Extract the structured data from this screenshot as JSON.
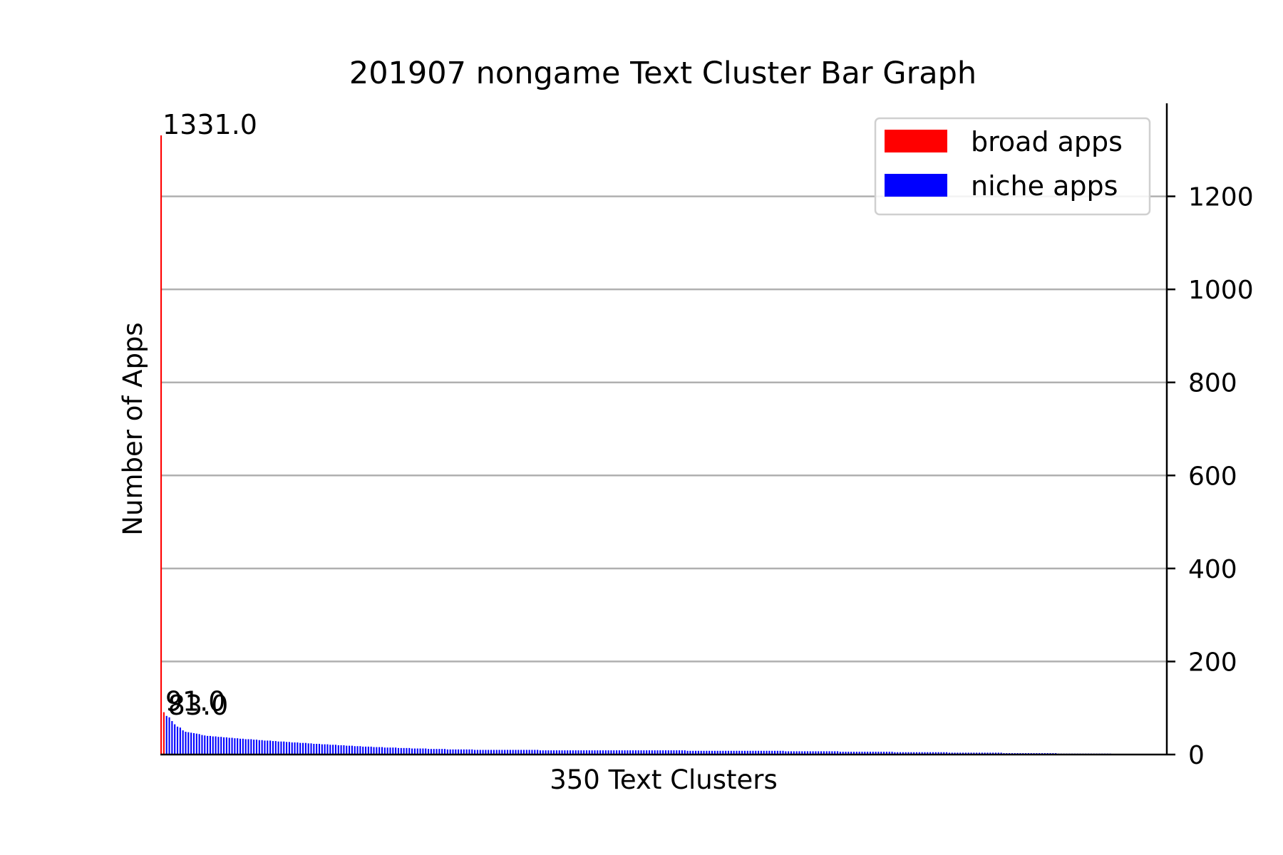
{
  "chart_data": {
    "type": "bar",
    "title": "201907 nongame Text Cluster Bar Graph",
    "xlabel": "350 Text Clusters",
    "ylabel": "Number of Apps",
    "ylim": [
      0,
      1400
    ],
    "yticks": [
      0,
      200,
      400,
      600,
      800,
      1000,
      1200
    ],
    "y_axis_side": "right",
    "grid": "horizontal",
    "legend_position": "top-right",
    "colors": {
      "broad": "#ff0000",
      "niche": "#0000ff",
      "grid": "#b0b0b0"
    },
    "series": [
      {
        "name": "broad apps",
        "color": "#ff0000",
        "index_range": [
          0,
          1
        ]
      },
      {
        "name": "niche apps",
        "color": "#0000ff",
        "index_range": [
          2,
          349
        ]
      }
    ],
    "data_labels": [
      {
        "index": 0,
        "text": "1331.0"
      },
      {
        "index": 1,
        "text": "91.0"
      },
      {
        "index": 2,
        "text": "83.0"
      }
    ],
    "values": [
      1331,
      91,
      83,
      80,
      72,
      65,
      60,
      58,
      52,
      49,
      48,
      47,
      46,
      45,
      44,
      42,
      41,
      40,
      40,
      39,
      39,
      38,
      38,
      37,
      37,
      36,
      36,
      35,
      35,
      34,
      34,
      33,
      33,
      33,
      32,
      32,
      31,
      31,
      30,
      30,
      30,
      29,
      29,
      28,
      28,
      28,
      27,
      27,
      26,
      26,
      26,
      25,
      25,
      25,
      24,
      24,
      23,
      23,
      23,
      22,
      22,
      22,
      21,
      21,
      21,
      20,
      20,
      20,
      19,
      19,
      19,
      18,
      18,
      18,
      17,
      17,
      17,
      17,
      16,
      16,
      16,
      16,
      15,
      15,
      15,
      15,
      15,
      14,
      14,
      14,
      14,
      14,
      13,
      13,
      13,
      13,
      13,
      13,
      12,
      12,
      12,
      12,
      12,
      12,
      12,
      11,
      11,
      11,
      11,
      11,
      11,
      11,
      11,
      11,
      11,
      10,
      10,
      10,
      10,
      10,
      10,
      10,
      10,
      10,
      10,
      10,
      10,
      10,
      10,
      10,
      10,
      10,
      10,
      10,
      10,
      10,
      10,
      10,
      10,
      9,
      9,
      9,
      9,
      9,
      9,
      9,
      9,
      9,
      9,
      9,
      9,
      9,
      9,
      9,
      9,
      9,
      9,
      9,
      9,
      9,
      9,
      9,
      9,
      9,
      9,
      9,
      9,
      9,
      9,
      9,
      9,
      9,
      9,
      9,
      9,
      9,
      9,
      9,
      9,
      9,
      9,
      9,
      9,
      9,
      9,
      9,
      9,
      9,
      9,
      9,
      9,
      9,
      9,
      8,
      8,
      8,
      8,
      8,
      8,
      8,
      8,
      8,
      8,
      8,
      8,
      8,
      8,
      8,
      8,
      8,
      8,
      8,
      8,
      8,
      8,
      8,
      8,
      8,
      8,
      8,
      8,
      8,
      8,
      8,
      8,
      8,
      8,
      8,
      8,
      7,
      7,
      7,
      7,
      7,
      7,
      7,
      7,
      7,
      7,
      7,
      7,
      7,
      7,
      7,
      7,
      7,
      7,
      7,
      7,
      6,
      6,
      6,
      6,
      6,
      6,
      6,
      6,
      6,
      6,
      6,
      6,
      6,
      6,
      6,
      6,
      6,
      6,
      6,
      6,
      5,
      5,
      5,
      5,
      5,
      5,
      5,
      5,
      5,
      5,
      5,
      5,
      5,
      5,
      5,
      5,
      5,
      5,
      5,
      5,
      4,
      4,
      4,
      4,
      4,
      4,
      4,
      4,
      4,
      4,
      4,
      4,
      4,
      4,
      4,
      4,
      4,
      4,
      4,
      4,
      3,
      3,
      3,
      3,
      3,
      3,
      3,
      3,
      3,
      3,
      3,
      3,
      3,
      3,
      3,
      3,
      3,
      3,
      3,
      3,
      2,
      2,
      2,
      2,
      2,
      2,
      2,
      2,
      2,
      2,
      2,
      2,
      2,
      2,
      2,
      2,
      2,
      2,
      2,
      2,
      1,
      1,
      1,
      1,
      1,
      1,
      1,
      1,
      1,
      1,
      1,
      1,
      1,
      1,
      1,
      1,
      1,
      1,
      1,
      1
    ]
  }
}
